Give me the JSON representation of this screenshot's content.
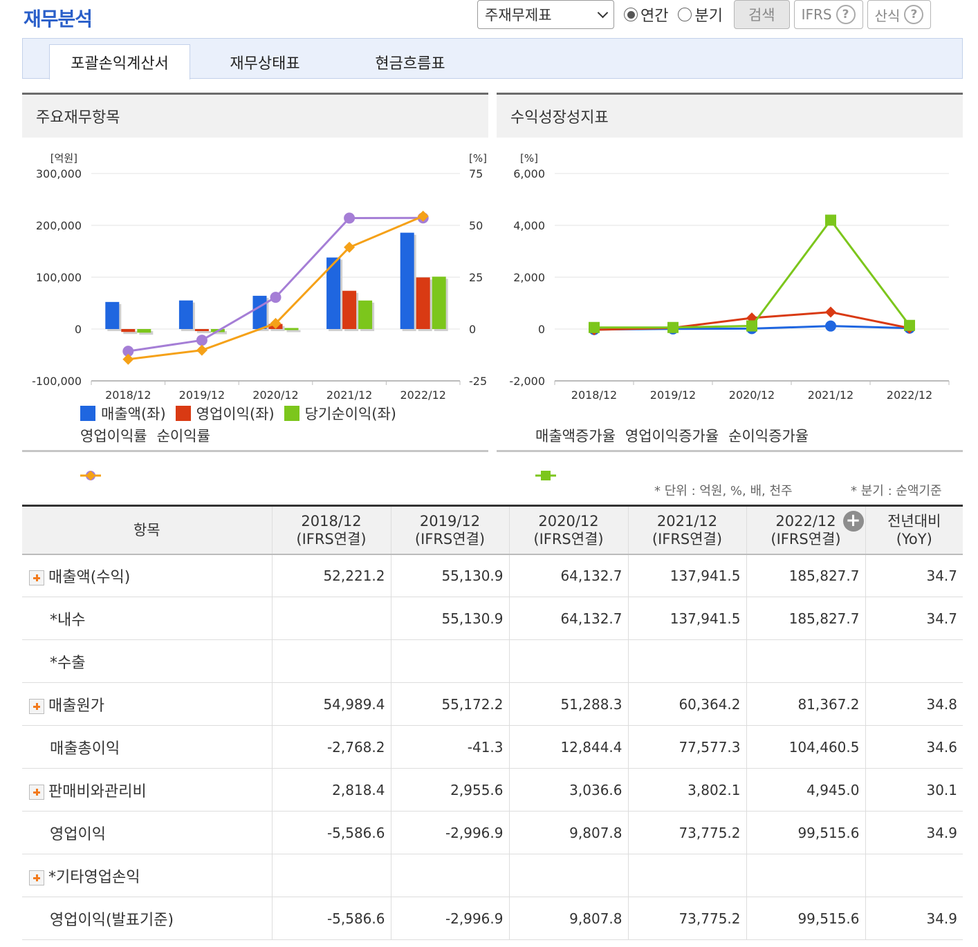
{
  "header": {
    "title": "재무분석",
    "select_value": "주재무제표",
    "radio_annual": "연간",
    "radio_quarter": "분기",
    "search_label": "검색",
    "ifrs_label": "IFRS",
    "formula_label": "산식"
  },
  "tabs": [
    "포괄손익계산서",
    "재무상태표",
    "현금흐름표"
  ],
  "left_panel": {
    "title": "주요재무항목"
  },
  "right_panel": {
    "title": "수익성장성지표"
  },
  "chart_data": [
    {
      "type": "bar",
      "title": "주요재무항목",
      "categories": [
        "2018/12",
        "2019/12",
        "2020/12",
        "2021/12",
        "2022/12"
      ],
      "y_unit_left": "[억원]",
      "y_unit_right": "[%]",
      "ylim_left": [
        -100000,
        300000
      ],
      "ylim_right": [
        -25,
        75
      ],
      "yticks_left": [
        "300,000",
        "200,000",
        "100,000",
        "0",
        "-100,000"
      ],
      "yticks_right": [
        "75",
        "50",
        "25",
        "0",
        "-25"
      ],
      "series": [
        {
          "name": "매출액(좌)",
          "kind": "bar",
          "axis": "left",
          "color": "#1f66e0",
          "values": [
            52221.2,
            55130.9,
            64132.7,
            137941.5,
            185827.7
          ]
        },
        {
          "name": "영업이익(좌)",
          "kind": "bar",
          "axis": "left",
          "color": "#d93a13",
          "values": [
            -5586.6,
            -2996.9,
            9807.8,
            73775.2,
            99515.6
          ]
        },
        {
          "name": "당기순이익(좌)",
          "kind": "bar",
          "axis": "left",
          "color": "#7cc61c",
          "values": [
            -7000,
            -6000,
            2000,
            55000,
            101000
          ]
        },
        {
          "name": "영업이익률",
          "kind": "line",
          "axis": "right",
          "color": "#a57ed6",
          "marker": "circle",
          "values": [
            -10.7,
            -5.4,
            15.3,
            53.5,
            53.6
          ]
        },
        {
          "name": "순이익률",
          "kind": "line",
          "axis": "right",
          "color": "#f5a118",
          "marker": "diamond",
          "values": [
            -14.6,
            -10.2,
            2.7,
            39.4,
            54.4
          ]
        }
      ]
    },
    {
      "type": "line",
      "title": "수익성장성지표",
      "categories": [
        "2018/12",
        "2019/12",
        "2020/12",
        "2021/12",
        "2022/12"
      ],
      "y_unit": "[%]",
      "ylim": [
        -2000,
        6000
      ],
      "yticks": [
        "6,000",
        "4,000",
        "2,000",
        "0",
        "-2,000"
      ],
      "series": [
        {
          "name": "매출액증가율",
          "color": "#1f66e0",
          "marker": "circle",
          "values": [
            -20,
            5.6,
            16.3,
            115.1,
            34.7
          ]
        },
        {
          "name": "영업이익증가율",
          "color": "#d93a13",
          "marker": "diamond",
          "values": [
            -30,
            46.4,
            427.3,
            652.2,
            34.9
          ]
        },
        {
          "name": "순이익증가율",
          "color": "#7cc61c",
          "marker": "square",
          "values": [
            60,
            60,
            120,
            4200,
            140
          ]
        }
      ]
    }
  ],
  "notes": {
    "unit": "* 단위 : 억원, %, 배, 천주",
    "quarter": "* 분기 : 순액기준"
  },
  "table": {
    "headers": [
      {
        "l1": "항목",
        "l2": ""
      },
      {
        "l1": "2018/12",
        "l2": "(IFRS연결)"
      },
      {
        "l1": "2019/12",
        "l2": "(IFRS연결)"
      },
      {
        "l1": "2020/12",
        "l2": "(IFRS연결)"
      },
      {
        "l1": "2021/12",
        "l2": "(IFRS연결)"
      },
      {
        "l1": "2022/12",
        "l2": "(IFRS연결)"
      },
      {
        "l1": "전년대비",
        "l2": "(YoY)"
      }
    ],
    "rows": [
      {
        "label": "매출액(수익)",
        "expand": true,
        "values": [
          "52,221.2",
          "55,130.9",
          "64,132.7",
          "137,941.5",
          "185,827.7",
          "34.7"
        ]
      },
      {
        "label": "*내수",
        "expand": false,
        "values": [
          "",
          "55,130.9",
          "64,132.7",
          "137,941.5",
          "185,827.7",
          "34.7"
        ]
      },
      {
        "label": "*수출",
        "expand": false,
        "values": [
          "",
          "",
          "",
          "",
          "",
          ""
        ]
      },
      {
        "label": "매출원가",
        "expand": true,
        "values": [
          "54,989.4",
          "55,172.2",
          "51,288.3",
          "60,364.2",
          "81,367.2",
          "34.8"
        ]
      },
      {
        "label": "매출총이익",
        "expand": false,
        "values": [
          "-2,768.2",
          "-41.3",
          "12,844.4",
          "77,577.3",
          "104,460.5",
          "34.6"
        ]
      },
      {
        "label": "판매비와관리비",
        "expand": true,
        "values": [
          "2,818.4",
          "2,955.6",
          "3,036.6",
          "3,802.1",
          "4,945.0",
          "30.1"
        ]
      },
      {
        "label": "영업이익",
        "expand": false,
        "values": [
          "-5,586.6",
          "-2,996.9",
          "9,807.8",
          "73,775.2",
          "99,515.6",
          "34.9"
        ]
      },
      {
        "label": "*기타영업손익",
        "expand": true,
        "values": [
          "",
          "",
          "",
          "",
          "",
          ""
        ]
      },
      {
        "label": "영업이익(발표기준)",
        "expand": false,
        "values": [
          "-5,586.6",
          "-2,996.9",
          "9,807.8",
          "73,775.2",
          "99,515.6",
          "34.9"
        ]
      }
    ]
  }
}
